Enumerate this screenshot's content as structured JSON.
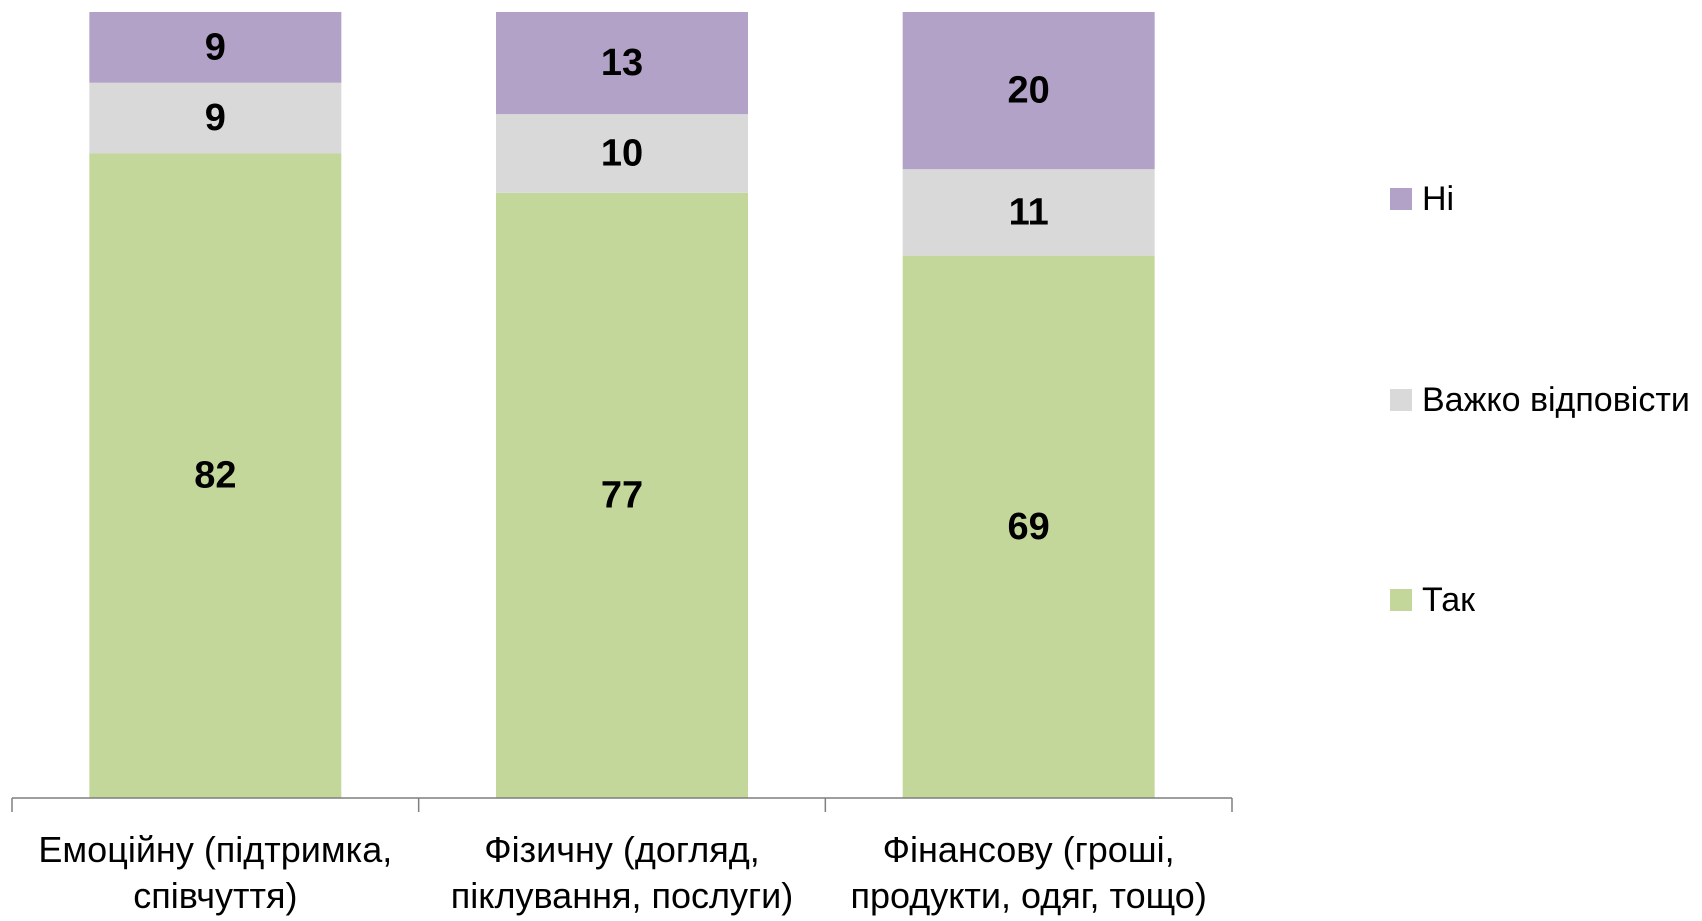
{
  "chart_data": {
    "type": "bar",
    "stacked": true,
    "categories": [
      [
        "Емоційну (підтримка,",
        "співчуття)"
      ],
      [
        "Фізичну (догляд,",
        "піклування, послуги)"
      ],
      [
        "Фінансову (гроші,",
        "продукти, одяг, тощо)"
      ]
    ],
    "series": [
      {
        "name": "Так",
        "values": [
          82,
          77,
          69
        ],
        "color": "#c4d79b"
      },
      {
        "name": "Важко відповісти",
        "values": [
          9,
          10,
          11
        ],
        "color": "#d9d9d9"
      },
      {
        "name": "Ні",
        "values": [
          9,
          13,
          20
        ],
        "color": "#b2a2c7"
      }
    ],
    "legend_order": [
      "Ні",
      "Важко відповісти",
      "Так"
    ],
    "ylim": [
      0,
      100
    ],
    "grid": false,
    "legend_position": "right"
  }
}
